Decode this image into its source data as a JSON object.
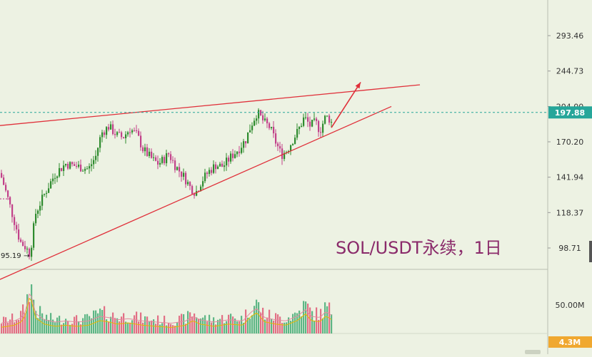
{
  "chart_data": {
    "type": "candlestick",
    "title": "SOL/USDT永续，1日",
    "price_axis": {
      "ticks": [
        293.46,
        244.73,
        204.0,
        170.2,
        141.94,
        118.37,
        98.71
      ],
      "tick_labels": [
        "293.46",
        "244.73",
        "204.00",
        "170.20",
        "141.94",
        "118.37",
        "98.71"
      ],
      "scale": "log",
      "ylim": [
        84,
        360
      ]
    },
    "current_price": {
      "value": 197.88,
      "label": "197.88",
      "color": "#26a69a"
    },
    "low_marker": {
      "value": 95.19,
      "label": "95.19"
    },
    "volume_axis": {
      "ticks": [
        50.0
      ],
      "tick_labels": [
        "50.00M"
      ],
      "current_volume_label": "4.3M",
      "current_volume_color": "#f0a830"
    },
    "colors": {
      "up": "#2e8b2e",
      "down": "#c2418a",
      "trendline": "#e0303a",
      "arrow": "#e0303a",
      "title": "#8a2a6a",
      "ma_yellow": "#e6b800",
      "ma_pink": "#e58aa0"
    },
    "trendlines": [
      {
        "name": "upper",
        "points": [
          [
            0,
            185
          ],
          [
            588,
            228
          ]
        ]
      },
      {
        "name": "lower",
        "points": [
          [
            0,
            84
          ],
          [
            548,
            204
          ]
        ]
      }
    ],
    "arrow": {
      "from": [
        464,
        183
      ],
      "to": [
        505,
        231
      ]
    },
    "anchors": [
      [
        0,
        145
      ],
      [
        8,
        132
      ],
      [
        18,
        116
      ],
      [
        28,
        102
      ],
      [
        36,
        99
      ],
      [
        42,
        95.5
      ],
      [
        50,
        118
      ],
      [
        62,
        130
      ],
      [
        78,
        145
      ],
      [
        92,
        152
      ],
      [
        108,
        150
      ],
      [
        124,
        148
      ],
      [
        134,
        158
      ],
      [
        142,
        178
      ],
      [
        152,
        184
      ],
      [
        164,
        176
      ],
      [
        172,
        174
      ],
      [
        182,
        182
      ],
      [
        192,
        176
      ],
      [
        200,
        164
      ],
      [
        206,
        160
      ],
      [
        214,
        155
      ],
      [
        222,
        152
      ],
      [
        230,
        156
      ],
      [
        236,
        160
      ],
      [
        246,
        150
      ],
      [
        258,
        142
      ],
      [
        266,
        135
      ],
      [
        274,
        131
      ],
      [
        282,
        139
      ],
      [
        292,
        146
      ],
      [
        302,
        151
      ],
      [
        312,
        150
      ],
      [
        324,
        158
      ],
      [
        334,
        164
      ],
      [
        344,
        172
      ],
      [
        352,
        186
      ],
      [
        360,
        198
      ],
      [
        370,
        188
      ],
      [
        378,
        183
      ],
      [
        386,
        170
      ],
      [
        394,
        159
      ],
      [
        402,
        163
      ],
      [
        410,
        172
      ],
      [
        418,
        181
      ],
      [
        426,
        193
      ],
      [
        434,
        185
      ],
      [
        442,
        188
      ],
      [
        448,
        180
      ],
      [
        456,
        194
      ],
      [
        462,
        191
      ],
      [
        466,
        185
      ]
    ],
    "volume_anchors": [
      [
        0,
        18
      ],
      [
        20,
        22
      ],
      [
        30,
        28
      ],
      [
        36,
        40
      ],
      [
        42,
        75
      ],
      [
        50,
        35
      ],
      [
        62,
        24
      ],
      [
        78,
        20
      ],
      [
        92,
        22
      ],
      [
        108,
        20
      ],
      [
        124,
        22
      ],
      [
        140,
        30
      ],
      [
        152,
        28
      ],
      [
        164,
        24
      ],
      [
        180,
        26
      ],
      [
        200,
        22
      ],
      [
        220,
        20
      ],
      [
        240,
        18
      ],
      [
        260,
        22
      ],
      [
        270,
        30
      ],
      [
        280,
        24
      ],
      [
        300,
        20
      ],
      [
        320,
        24
      ],
      [
        340,
        22
      ],
      [
        352,
        38
      ],
      [
        360,
        44
      ],
      [
        370,
        28
      ],
      [
        386,
        24
      ],
      [
        400,
        22
      ],
      [
        416,
        30
      ],
      [
        428,
        42
      ],
      [
        436,
        30
      ],
      [
        448,
        28
      ],
      [
        456,
        38
      ],
      [
        462,
        34
      ],
      [
        466,
        30
      ]
    ]
  }
}
